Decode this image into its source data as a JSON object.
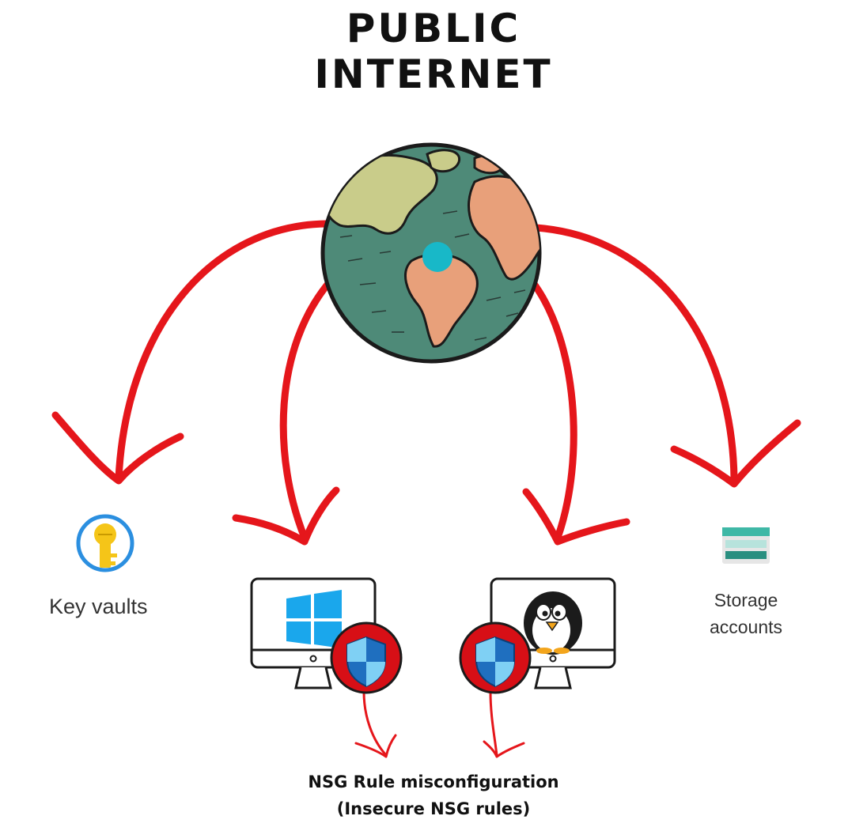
{
  "title": {
    "line1": "PUBLIC",
    "line2": "INTERNET"
  },
  "nodes": {
    "key_vaults": "Key vaults",
    "storage_accounts_line1": "Storage",
    "storage_accounts_line2": "accounts"
  },
  "annotation": {
    "line1": "NSG Rule misconfiguration",
    "line2": "(Insecure NSG rules)"
  },
  "colors": {
    "arrow": "#e5161b",
    "globe_ocean": "#4e8a78",
    "globe_land_americas": "#c9cc8a",
    "globe_land_africa": "#e8a07a",
    "marker": "#18b8c8",
    "shield_badge": "#d70f16",
    "windows_logo": "#1aa7ec",
    "storage_teal": "#3fb8a6",
    "key_yellow": "#f5c518",
    "key_ring": "#2b8fe0"
  },
  "icons": [
    "globe-icon",
    "key-vault-icon",
    "windows-monitor-icon",
    "linux-monitor-icon",
    "shield-icon",
    "storage-account-icon"
  ]
}
